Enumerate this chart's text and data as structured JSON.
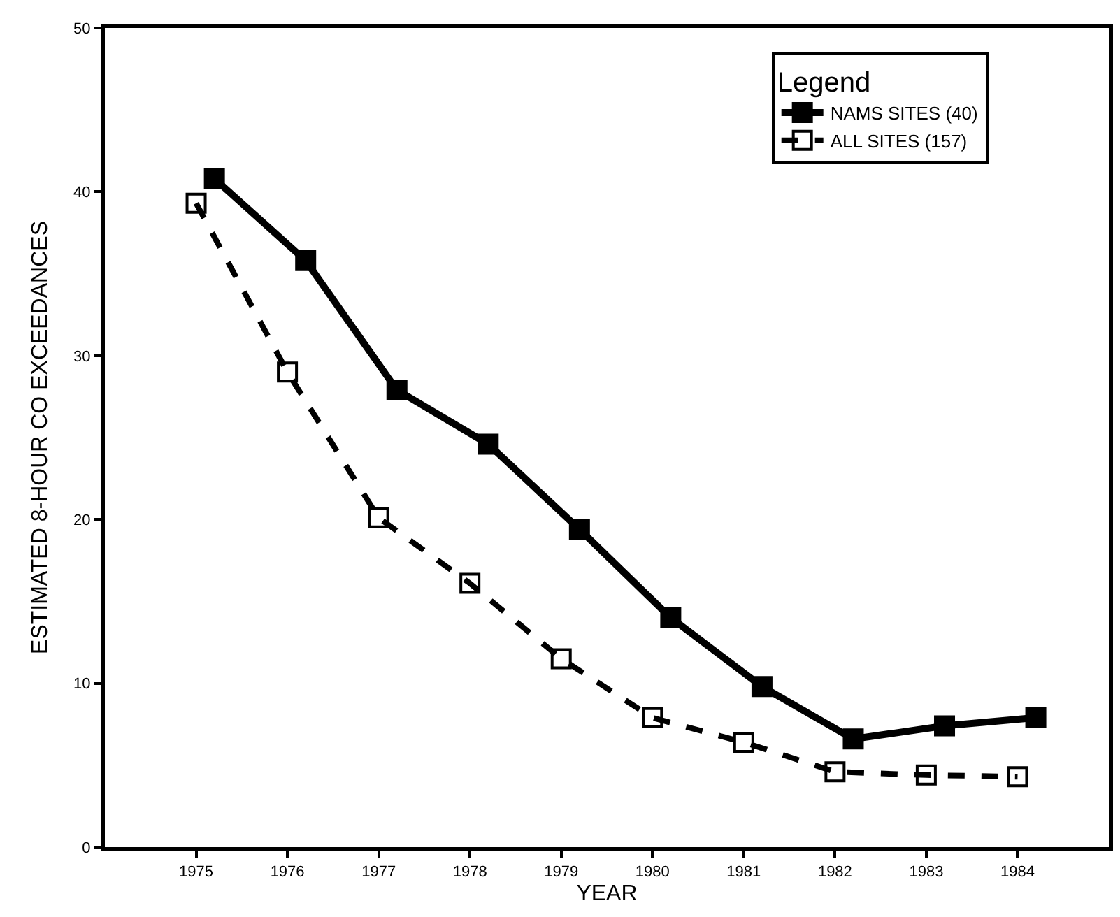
{
  "chart_data": {
    "type": "line",
    "xlabel": "YEAR",
    "ylabel": "ESTIMATED 8-HOUR CO EXCEEDANCES",
    "legend_title": "Legend",
    "legend": "top right",
    "xlim": [
      1974,
      1985
    ],
    "xticks": [
      1975,
      1976,
      1977,
      1978,
      1979,
      1980,
      1981,
      1982,
      1983,
      1984
    ],
    "ylim": [
      0,
      50
    ],
    "yticks": [
      0,
      10,
      20,
      30,
      40,
      50
    ],
    "series": [
      {
        "name": "NAMS SITES (40)",
        "color": "#000000",
        "marker": "square",
        "line_style": "solid",
        "x": [
          1975.2,
          1976.2,
          1977.2,
          1978.2,
          1979.2,
          1980.2,
          1981.2,
          1982.2,
          1983.2,
          1984.2
        ],
        "values": [
          40.8,
          35.8,
          27.9,
          24.6,
          19.4,
          14.0,
          9.8,
          6.6,
          7.4,
          7.9
        ]
      },
      {
        "name": "ALL SITES (157)",
        "color": "#000000",
        "marker": "square-open",
        "line_style": "dashed",
        "x": [
          1975,
          1976,
          1977,
          1978,
          1979,
          1980,
          1981,
          1982,
          1983,
          1984
        ],
        "values": [
          39.3,
          29.0,
          20.1,
          16.1,
          11.5,
          7.9,
          6.4,
          4.6,
          4.4,
          4.3
        ]
      }
    ]
  }
}
